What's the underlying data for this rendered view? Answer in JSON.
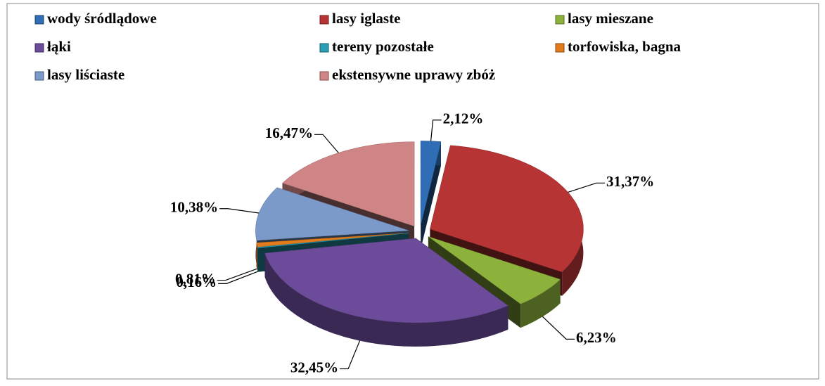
{
  "chart_data": {
    "type": "pie",
    "categories": [
      "wody śródlądowe",
      "lasy iglaste",
      "lasy mieszane",
      "łąki",
      "tereny pozostałe",
      "torfowiska, bagna",
      "lasy liściaste",
      "ekstensywne uprawy zbóż"
    ],
    "values": [
      2.12,
      31.37,
      6.23,
      32.45,
      0.16,
      0.81,
      10.38,
      16.47
    ],
    "value_labels": [
      "2,12%",
      "31,37%",
      "6,23%",
      "32,45%",
      "0,16%",
      "0,81%",
      "10,38%",
      "16,47%"
    ],
    "colors": [
      "#2f6db5",
      "#b63434",
      "#8cb23c",
      "#6c4b9b",
      "#2a9fb6",
      "#e27b1c",
      "#7b99c9",
      "#cf8585"
    ],
    "legend_position": "top",
    "exploded": true,
    "three_d": true
  }
}
